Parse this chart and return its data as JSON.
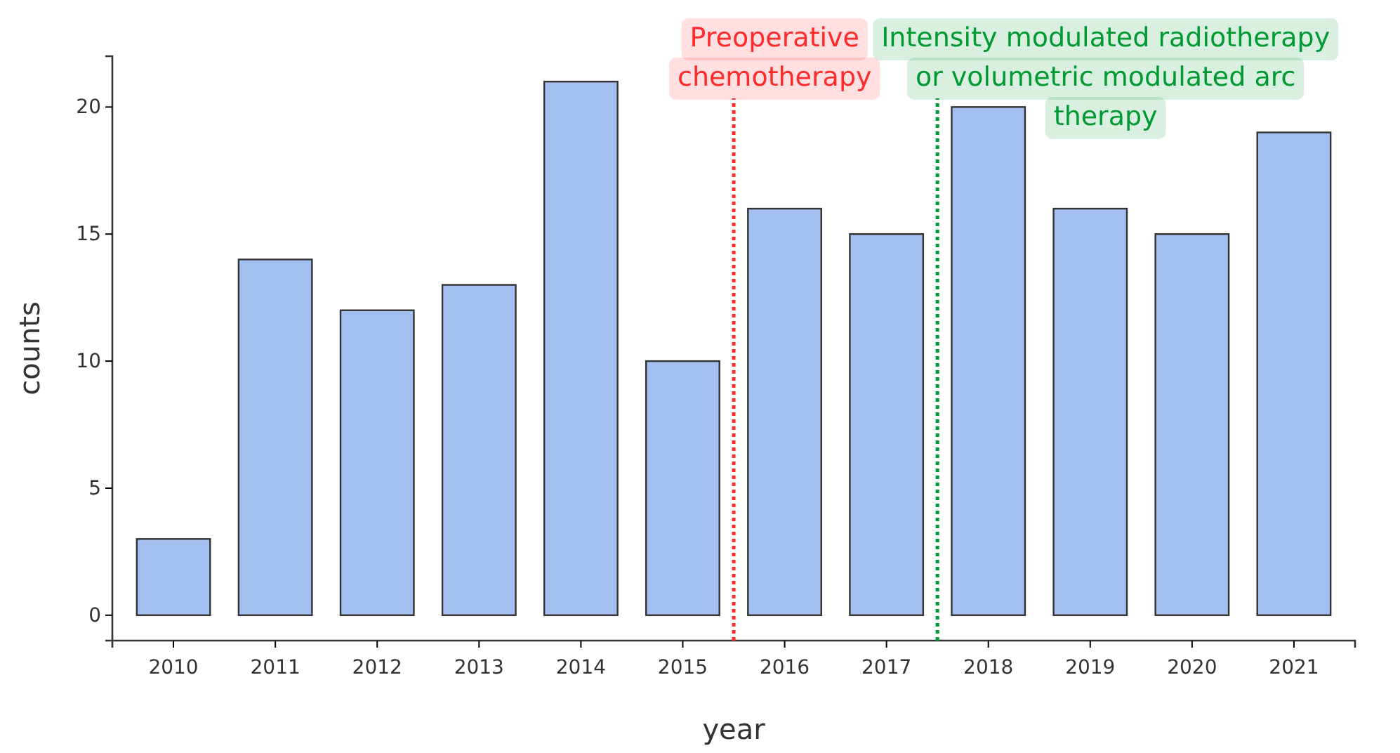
{
  "chart_data": {
    "type": "bar",
    "xlabel": "year",
    "ylabel": "counts",
    "x": [
      2010,
      2011,
      2012,
      2013,
      2014,
      2015,
      2016,
      2017,
      2018,
      2019,
      2020,
      2021
    ],
    "values": [
      3,
      14,
      12,
      13,
      21,
      10,
      16,
      15,
      20,
      16,
      15,
      19
    ],
    "color": "#a3bff0",
    "xlim": [
      2009.4,
      2021.6
    ],
    "xticks": [
      2010,
      2011,
      2012,
      2013,
      2014,
      2015,
      2016,
      2017,
      2018,
      2019,
      2020,
      2021
    ],
    "ylim": [
      -1,
      22
    ],
    "yticks": [
      0,
      5,
      10,
      15,
      20
    ],
    "ref_lines": [
      {
        "axis": "x",
        "value": 2015.5,
        "label": "Preoperative\nchemotherapy",
        "color": "#ff2a2a",
        "line_style": "dotted"
      },
      {
        "axis": "x",
        "value": 2017.5,
        "label": "Intensity modulated radiotherapy\nor volumetric modulated arc\ntherapy",
        "color": "#009933",
        "line_style": "dotted"
      }
    ],
    "grid": false
  }
}
